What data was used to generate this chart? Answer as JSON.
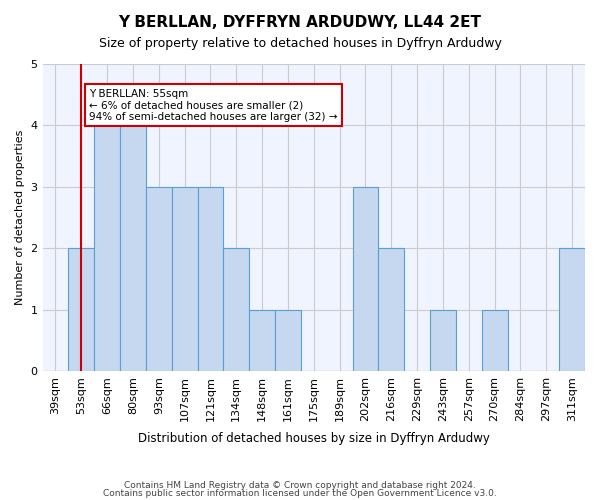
{
  "title": "Y BERLLAN, DYFFRYN ARDUDWY, LL44 2ET",
  "subtitle": "Size of property relative to detached houses in Dyffryn Ardudwy",
  "xlabel": "Distribution of detached houses by size in Dyffryn Ardudwy",
  "ylabel": "Number of detached properties",
  "footer1": "Contains HM Land Registry data © Crown copyright and database right 2024.",
  "footer2": "Contains public sector information licensed under the Open Government Licence v3.0.",
  "categories": [
    "39sqm",
    "53sqm",
    "66sqm",
    "80sqm",
    "93sqm",
    "107sqm",
    "121sqm",
    "134sqm",
    "148sqm",
    "161sqm",
    "175sqm",
    "189sqm",
    "202sqm",
    "216sqm",
    "229sqm",
    "243sqm",
    "257sqm",
    "270sqm",
    "284sqm",
    "297sqm",
    "311sqm"
  ],
  "values": [
    0,
    2,
    4,
    4,
    3,
    3,
    3,
    2,
    1,
    1,
    0,
    0,
    3,
    2,
    0,
    1,
    0,
    1,
    0,
    0,
    2
  ],
  "bar_color": "#c5d8f0",
  "bar_edge_color": "#5a9fd4",
  "highlight_index": 1,
  "highlight_line_color": "#cc0000",
  "ylim": [
    0,
    5
  ],
  "yticks": [
    0,
    1,
    2,
    3,
    4,
    5
  ],
  "annotation_text": "Y BERLLAN: 55sqm\n← 6% of detached houses are smaller (2)\n94% of semi-detached houses are larger (32) →",
  "annotation_box_color": "#ffffff",
  "annotation_box_edge": "#cc0000",
  "grid_color": "#cccccc",
  "background_color": "#ffffff",
  "plot_bg_color": "#f0f4ff"
}
